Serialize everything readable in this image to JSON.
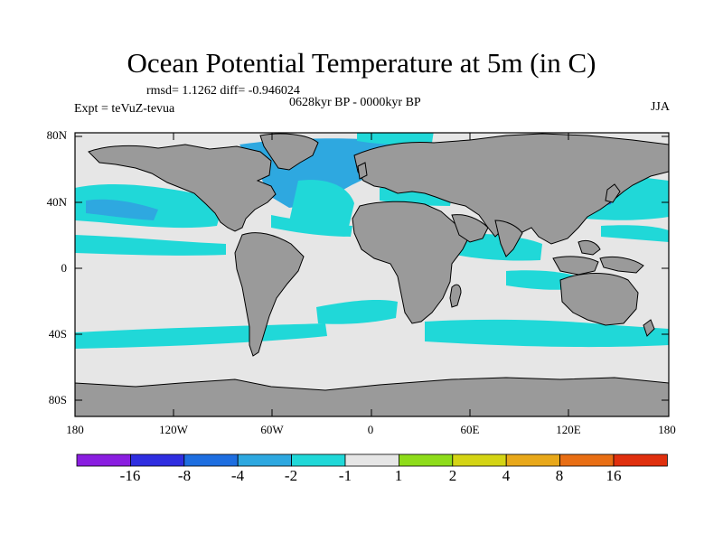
{
  "title": "Ocean Potential Temperature at 5m (in C)",
  "stats": "rmsd= 1.1262 diff= -0.946024",
  "period": "0628kyr BP - 0000kyr BP",
  "experiment": "Expt = teVuZ-tevua",
  "season": "JJA",
  "lat_ticks": [
    "80N",
    "40N",
    "0",
    "40S",
    "80S"
  ],
  "lon_ticks": [
    "180",
    "120W",
    "60W",
    "0",
    "60E",
    "120E",
    "180"
  ],
  "colorbar": {
    "colors": [
      "#8a1ee0",
      "#2f2ee0",
      "#1e6ee0",
      "#2ea8e0",
      "#20d8d8",
      "#e6e6e6",
      "#8edc1a",
      "#d4d414",
      "#e8a81a",
      "#e86e14",
      "#e0300e"
    ],
    "labels": [
      "-16",
      "-8",
      "-4",
      "-2",
      "-1",
      "1",
      "2",
      "4",
      "8",
      "16"
    ]
  },
  "palette": {
    "land": "#9a9a9a",
    "ocean_neutral": "#e6e6e6",
    "cool_1": "#20d8d8",
    "cool_2": "#2ea8e0",
    "cool_3": "#1e6ee0"
  }
}
